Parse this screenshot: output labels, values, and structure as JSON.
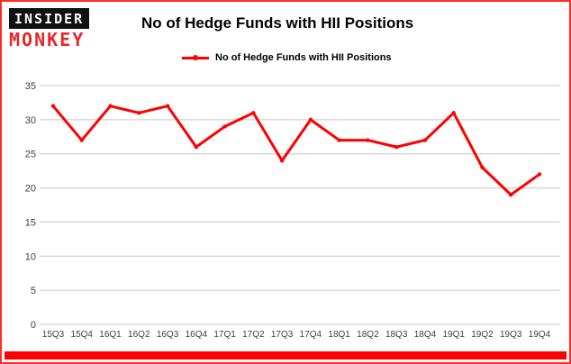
{
  "header": {
    "logo_top": "INSIDER",
    "logo_bottom": "MONKEY",
    "title": "No of Hedge Funds with HII Positions"
  },
  "legend": {
    "label": "No of Hedge Funds with HII Positions"
  },
  "colors": {
    "line": "#fe0000",
    "border": "#fe2b2b",
    "grid": "#c6c6c6",
    "tick_text": "#404040",
    "bottom_bar": "#fe0000",
    "logo_red": "#e8262d"
  },
  "chart_data": {
    "type": "line",
    "title": "No of Hedge Funds with HII Positions",
    "categories": [
      "15Q3",
      "15Q4",
      "16Q1",
      "16Q2",
      "16Q3",
      "16Q4",
      "17Q1",
      "17Q2",
      "17Q3",
      "17Q4",
      "18Q1",
      "18Q2",
      "18Q3",
      "18Q4",
      "19Q1",
      "19Q2",
      "19Q3",
      "19Q4"
    ],
    "values": [
      32,
      27,
      32,
      31,
      32,
      26,
      29,
      31,
      24,
      30,
      27,
      27,
      26,
      27,
      31,
      23,
      19,
      22
    ],
    "series_name": "No of Hedge Funds with HII Positions",
    "xlabel": "",
    "ylabel": "",
    "ylim": [
      0,
      35
    ],
    "yticks": [
      0,
      5,
      10,
      15,
      20,
      25,
      30,
      35
    ],
    "grid": true,
    "legend_position": "top-left"
  }
}
